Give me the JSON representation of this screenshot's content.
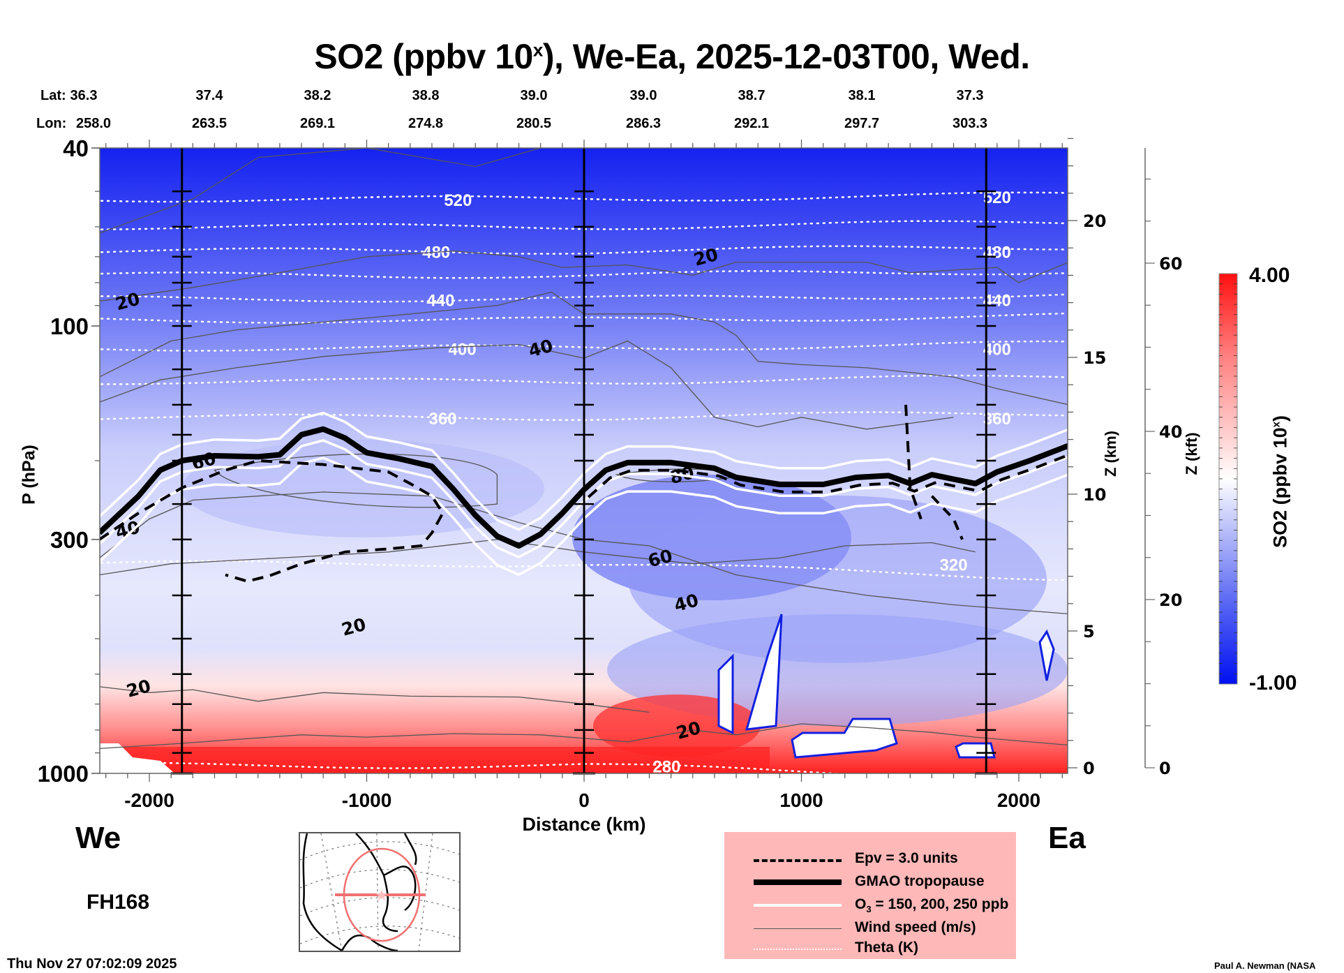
{
  "title": {
    "prefix": "SO2 (ppbv 10",
    "superscript": "x",
    "suffix": "), We-Ea, 2025-12-03T00, Wed."
  },
  "latlon": {
    "lat_label": "Lat:",
    "lon_label": "Lon:",
    "points": [
      {
        "lat": "36.3",
        "lon": "258.0"
      },
      {
        "lat": "37.4",
        "lon": "263.5"
      },
      {
        "lat": "38.2",
        "lon": "269.1"
      },
      {
        "lat": "38.8",
        "lon": "274.8"
      },
      {
        "lat": "39.0",
        "lon": "280.5"
      },
      {
        "lat": "39.0",
        "lon": "286.3"
      },
      {
        "lat": "38.7",
        "lon": "292.1"
      },
      {
        "lat": "38.1",
        "lon": "297.7"
      },
      {
        "lat": "37.3",
        "lon": "303.3"
      }
    ]
  },
  "chart_data": {
    "type": "heatmap",
    "title": "SO2 (ppbv 10^x), We-Ea, 2025-12-03T00, Wed.",
    "xlabel": "Distance (km)",
    "ylabel": "P (hPa)",
    "xlim": [
      -2230,
      2230
    ],
    "ylim": [
      1000,
      40
    ],
    "yscale": "log",
    "x_ticks": [
      -2000,
      -1000,
      0,
      1000,
      2000
    ],
    "x_tick_labels": [
      "-2000",
      "-1000",
      "0",
      "1000",
      "2000"
    ],
    "y_ticks": [
      40,
      100,
      300,
      1000
    ],
    "y_tick_labels": [
      "40",
      "100",
      "300",
      "1000"
    ],
    "right_axis_km": {
      "label": "Z (km)",
      "ticks": [
        0,
        5,
        10,
        15,
        20
      ],
      "tick_labels": [
        "0",
        "5",
        "10",
        "15",
        "20"
      ]
    },
    "right_axis_kft": {
      "label": "Z (kft)",
      "ticks": [
        0,
        20,
        40,
        60
      ],
      "tick_labels": [
        "0",
        "20",
        "40",
        "60"
      ]
    },
    "colorbar": {
      "label": "SO2 (ppbv 10^x)",
      "label_prefix": "SO2 (ppbv 10",
      "label_sup": "x",
      "label_suffix": ")",
      "min": -1.0,
      "max": 4.0,
      "min_label": "-1.00",
      "max_label": "4.00",
      "colors": [
        "#0010f0",
        "#ffffff",
        "#ff1010"
      ]
    },
    "vertical_markers_km": [
      -1850,
      0,
      1850
    ],
    "theta_contours_K": [
      {
        "value": 520,
        "p": 52,
        "label": "520"
      },
      {
        "value": 500,
        "p": 60
      },
      {
        "value": 480,
        "p": 68,
        "label": "480"
      },
      {
        "value": 460,
        "p": 77
      },
      {
        "value": 440,
        "p": 87,
        "label": "440"
      },
      {
        "value": 420,
        "p": 97
      },
      {
        "value": 400,
        "p": 112,
        "label": "400"
      },
      {
        "value": 380,
        "p": 133
      },
      {
        "value": 360,
        "p": 160,
        "label": "360"
      },
      {
        "value": 320,
        "p": 340,
        "label": "320"
      },
      {
        "value": 280,
        "p": 960,
        "label": "280"
      }
    ],
    "wind_labels": [
      {
        "text": "20",
        "x": -2100,
        "p": 88
      },
      {
        "text": "40",
        "x": -200,
        "p": 112
      },
      {
        "text": "20",
        "x": 560,
        "p": 70
      },
      {
        "text": "60",
        "x": -1750,
        "p": 200
      },
      {
        "text": "80",
        "x": 450,
        "p": 215
      },
      {
        "text": "60",
        "x": 350,
        "p": 330
      },
      {
        "text": "40",
        "x": 470,
        "p": 415
      },
      {
        "text": "20",
        "x": -1060,
        "p": 470
      },
      {
        "text": "20",
        "x": -2050,
        "p": 645
      },
      {
        "text": "20",
        "x": 480,
        "p": 800
      },
      {
        "text": "40",
        "x": -2100,
        "p": 285
      }
    ],
    "tropopause_km_hPa": [
      [
        -2230,
        290
      ],
      [
        -2050,
        240
      ],
      [
        -1950,
        210
      ],
      [
        -1850,
        200
      ],
      [
        -1700,
        195
      ],
      [
        -1500,
        196
      ],
      [
        -1400,
        194
      ],
      [
        -1300,
        175
      ],
      [
        -1200,
        170
      ],
      [
        -1100,
        178
      ],
      [
        -1000,
        192
      ],
      [
        -850,
        198
      ],
      [
        -700,
        206
      ],
      [
        -600,
        232
      ],
      [
        -500,
        265
      ],
      [
        -400,
        295
      ],
      [
        -300,
        310
      ],
      [
        -200,
        292
      ],
      [
        -100,
        262
      ],
      [
        0,
        232
      ],
      [
        100,
        210
      ],
      [
        200,
        202
      ],
      [
        400,
        202
      ],
      [
        600,
        208
      ],
      [
        700,
        218
      ],
      [
        900,
        226
      ],
      [
        1100,
        226
      ],
      [
        1250,
        218
      ],
      [
        1400,
        216
      ],
      [
        1500,
        225
      ],
      [
        1600,
        215
      ],
      [
        1700,
        220
      ],
      [
        1800,
        225
      ],
      [
        1900,
        212
      ],
      [
        2050,
        200
      ],
      [
        2230,
        185
      ]
    ],
    "epv_km_hPa": [
      [
        -2230,
        300
      ],
      [
        -2050,
        262
      ],
      [
        -1850,
        230
      ],
      [
        -1650,
        210
      ],
      [
        -1500,
        200
      ],
      [
        -1200,
        204
      ],
      [
        -900,
        212
      ],
      [
        -800,
        225
      ],
      [
        -700,
        240
      ],
      [
        -650,
        262
      ],
      [
        -700,
        290
      ],
      [
        -750,
        310
      ],
      [
        -900,
        315
      ],
      [
        -1100,
        320
      ],
      [
        -1200,
        330
      ],
      [
        -1300,
        340
      ],
      [
        -1450,
        362
      ],
      [
        -1550,
        372
      ],
      [
        -1650,
        360
      ]
    ],
    "legend": [
      {
        "label": "Epv = 3.0 units",
        "style": "dashed-black"
      },
      {
        "label": "GMAO tropopause",
        "style": "thick-black"
      },
      {
        "label_main": "O",
        "label_sub": "3",
        "label_rest": " = 150, 200, 250 ppb",
        "label": "O3 = 150, 200, 250 ppb",
        "style": "white"
      },
      {
        "label": "Wind speed (m/s)",
        "style": "thin-gray"
      },
      {
        "label": "Theta (K)",
        "style": "dotted-white"
      }
    ]
  },
  "annotations": {
    "west_label": "We",
    "east_label": "Ea",
    "forecast_hour": "FH168",
    "timestamp": "Thu Nov 27 07:02:09 2025",
    "credit": "Paul A. Newman (NASA"
  },
  "colors": {
    "blue": "#0010f0",
    "red": "#ff1010",
    "legend_bg": "#ffb8b8",
    "map_circle": "#f07070"
  }
}
